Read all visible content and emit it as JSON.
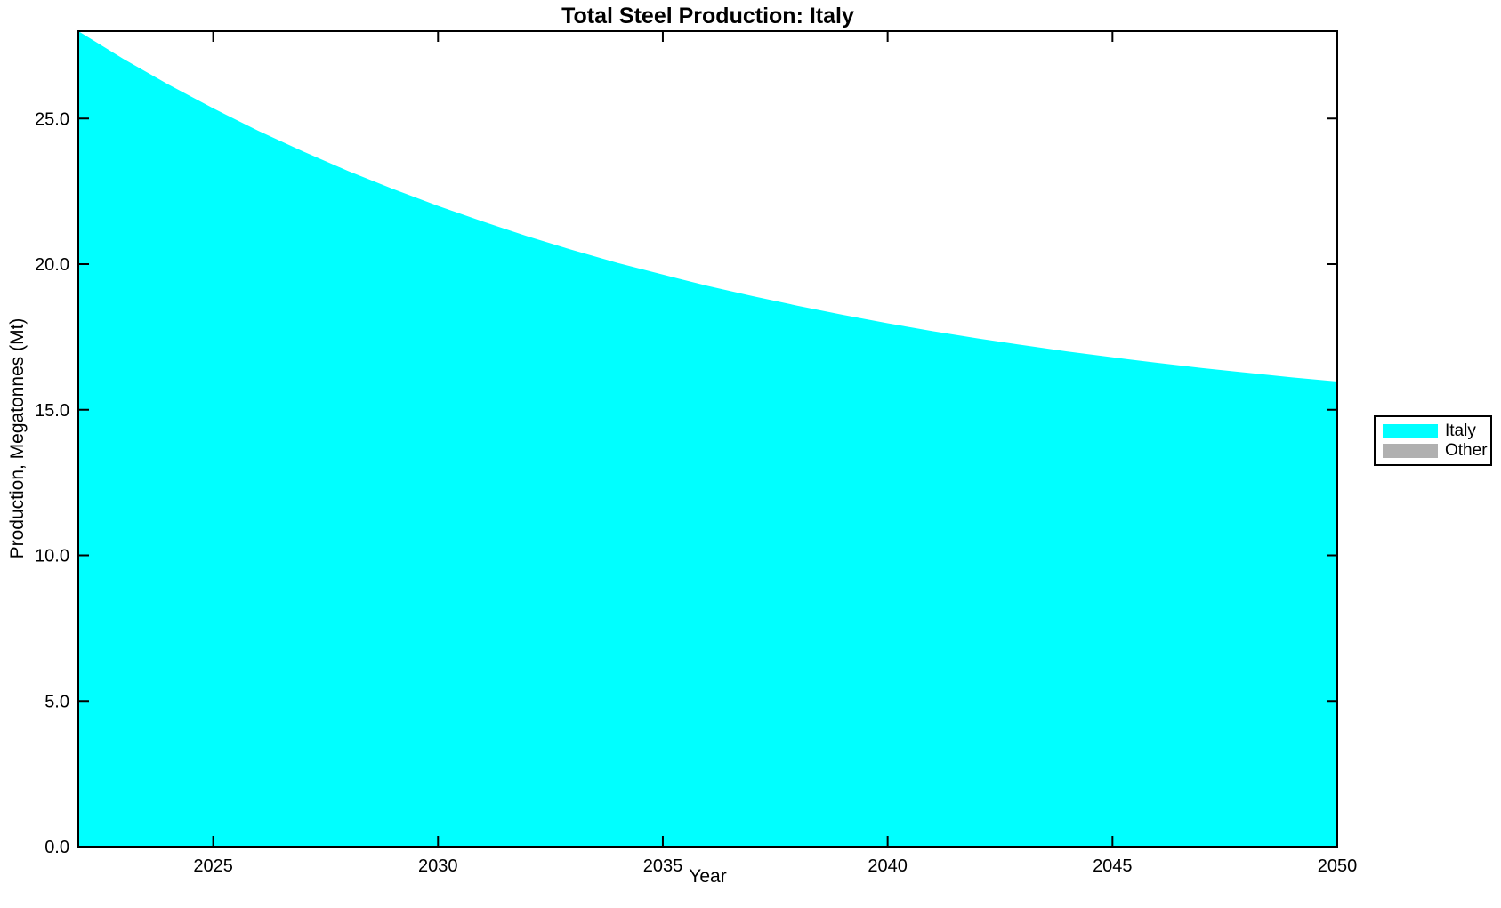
{
  "chart_data": {
    "type": "area",
    "title": "Total Steel Production: Italy",
    "xlabel": "Year",
    "ylabel": "Production, Megatonnes (Mt)",
    "xlim": [
      2022,
      2050
    ],
    "ylim": [
      0,
      28
    ],
    "grid": false,
    "stacked": true,
    "background_color": "#ffffff",
    "axis_color": "#000000",
    "xticks": [
      2025,
      2030,
      2035,
      2040,
      2045,
      2050
    ],
    "xtick_labels": [
      "2025",
      "2030",
      "2035",
      "2040",
      "2045",
      "2050"
    ],
    "yticks": [
      0,
      5,
      10,
      15,
      20,
      25
    ],
    "ytick_labels": [
      "0.0",
      "5.0",
      "10.0",
      "15.0",
      "20.0",
      "25.0"
    ],
    "x": [
      2022,
      2023,
      2024,
      2025,
      2026,
      2027,
      2028,
      2029,
      2030,
      2031,
      2032,
      2033,
      2034,
      2035,
      2036,
      2037,
      2038,
      2039,
      2040,
      2041,
      2042,
      2043,
      2044,
      2045,
      2046,
      2047,
      2048,
      2049,
      2050
    ],
    "series": [
      {
        "name": "Italy",
        "color": "#00ffff",
        "values": [
          28.0,
          27.05,
          26.17,
          25.35,
          24.58,
          23.87,
          23.2,
          22.58,
          22.0,
          21.46,
          20.95,
          20.48,
          20.04,
          19.64,
          19.25,
          18.9,
          18.57,
          18.26,
          17.97,
          17.7,
          17.45,
          17.22,
          17.0,
          16.8,
          16.61,
          16.43,
          16.27,
          16.11,
          15.97
        ]
      },
      {
        "name": "Other",
        "color": "#b0b0b0",
        "values": [
          0,
          0,
          0,
          0,
          0,
          0,
          0,
          0,
          0,
          0,
          0,
          0,
          0,
          0,
          0,
          0,
          0,
          0,
          0,
          0,
          0,
          0,
          0,
          0,
          0,
          0,
          0,
          0,
          0
        ]
      }
    ],
    "legend": {
      "position": "right",
      "entries": [
        {
          "label": "Italy",
          "color": "#00ffff"
        },
        {
          "label": "Other",
          "color": "#b0b0b0"
        }
      ]
    }
  }
}
